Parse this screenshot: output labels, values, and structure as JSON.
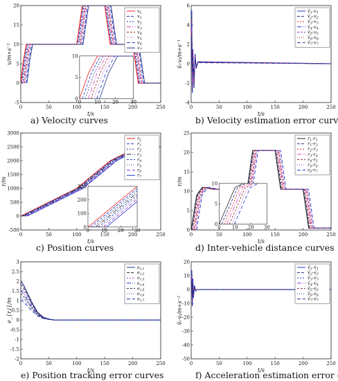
{
  "colors": {
    "red": "#e8211f",
    "blue": "#1f36c8",
    "navy": "#223388",
    "black": "#222222",
    "purple": "#9b2fd6",
    "magenta": "#d63cb6",
    "darkred": "#8a2a2a",
    "green": "#2c8a3a"
  },
  "chart_data": [
    {
      "id": "a",
      "type": "line",
      "caption": "a)  Velocity  curves",
      "xlabel": "t/s",
      "ylabel": "v/m∗s⁻¹",
      "xlim": [
        0,
        250
      ],
      "ylim": [
        -5,
        20
      ],
      "xticks": [
        "0",
        "50",
        "100",
        "150",
        "200",
        "250"
      ],
      "yticks": [
        "-5",
        "0",
        "5",
        "10",
        "15",
        "20"
      ],
      "legend": [
        "v_L",
        "v_1",
        "v_2",
        "v_3",
        "v_4",
        "v_5",
        "v_6",
        "v_7"
      ],
      "series": [
        {
          "name": "v_L",
          "color": "red",
          "dash": "none",
          "points": [
            [
              0,
              0
            ],
            [
              5,
              6
            ],
            [
              10,
              10
            ],
            [
              100,
              10
            ],
            [
              110,
              20
            ],
            [
              150,
              20
            ],
            [
              160,
              10
            ],
            [
              200,
              10
            ],
            [
              210,
              0
            ],
            [
              250,
              0
            ]
          ]
        }
      ],
      "inset": {
        "xlim": [
          0,
          30
        ],
        "ylim": [
          0,
          10
        ],
        "xticks": [
          "0",
          "10",
          "20",
          "30"
        ],
        "yticks": [
          "0",
          "5",
          "10"
        ]
      }
    },
    {
      "id": "b",
      "type": "line",
      "caption": "b)  Velocity estimation error curves",
      "xlabel": "t/s",
      "ylabel": "v̂ᵢ-vᵢ/m∗s⁻¹",
      "xlim": [
        0,
        250
      ],
      "ylim": [
        -4,
        6
      ],
      "xticks": [
        "0",
        "50",
        "100",
        "150",
        "200",
        "250"
      ],
      "yticks": [
        "-4",
        "-2",
        "0",
        "2",
        "4",
        "6"
      ],
      "legend": [
        "v̂_1-v_1",
        "v̂_2-v_2",
        "v̂_3-v_3",
        "v̂_4-v_4",
        "v̂_5-v_5",
        "v̂_6-v_6",
        "v̂_7-v_7"
      ],
      "series": [
        {
          "name": "v̂_1-v_1",
          "color": "blue",
          "dash": "3,2",
          "points": [
            [
              0,
              0
            ],
            [
              1,
              5.5
            ],
            [
              2,
              -3
            ],
            [
              3,
              1.5
            ],
            [
              5,
              -2.5
            ],
            [
              7,
              1
            ],
            [
              9,
              -0.5
            ],
            [
              12,
              0.2
            ],
            [
              250,
              0
            ]
          ]
        }
      ]
    },
    {
      "id": "c",
      "type": "line",
      "caption": "c)  Position  curves",
      "xlabel": "t/s",
      "ylabel": "r/m",
      "xlim": [
        0,
        250
      ],
      "ylim": [
        -500,
        3000
      ],
      "xticks": [
        "0",
        "50",
        "100",
        "150",
        "200",
        "250"
      ],
      "yticks": [
        "-500",
        "0",
        "500",
        "1000",
        "1500",
        "2000",
        "2500",
        "3000"
      ],
      "legend": [
        "r_L",
        "r_1",
        "r_2",
        "r_3",
        "r_4",
        "r_5",
        "r_6",
        "r_7"
      ],
      "series": [
        {
          "name": "r_L",
          "color": "red",
          "dash": "none",
          "points": [
            [
              0,
              0
            ],
            [
              100,
              1000
            ],
            [
              160,
              2000
            ],
            [
              210,
              2500
            ],
            [
              250,
              2500
            ]
          ]
        }
      ],
      "inset": {
        "xlim": [
          0,
          30
        ],
        "ylim": [
          0,
          300
        ],
        "xticks": [
          "0",
          "10",
          "20",
          "30"
        ],
        "yticks": [
          "0",
          "100",
          "200",
          "300"
        ]
      }
    },
    {
      "id": "d",
      "type": "line",
      "caption": "d)  Inter-vehicle distance curves",
      "xlabel": "t/s",
      "ylabel": "r/m",
      "xlim": [
        0,
        250
      ],
      "ylim": [
        0,
        25
      ],
      "xticks": [
        "0",
        "50",
        "100",
        "150",
        "200",
        "250"
      ],
      "yticks": [
        "0",
        "5",
        "10",
        "15",
        "20",
        "25"
      ],
      "legend": [
        "r_L-r_1",
        "r_1-r_2",
        "r_2-r_3",
        "r_3-r_4",
        "r_4-r_5",
        "r_5-r_6",
        "r_6-r_7"
      ],
      "series": [
        {
          "name": "r_L-r_1",
          "color": "black",
          "dash": "3,2",
          "points": [
            [
              0,
              0
            ],
            [
              10,
              9
            ],
            [
              20,
              11
            ],
            [
              40,
              10.5
            ],
            [
              100,
              10.5
            ],
            [
              110,
              20.5
            ],
            [
              150,
              20.5
            ],
            [
              160,
              10.5
            ],
            [
              200,
              10.5
            ],
            [
              210,
              0.5
            ],
            [
              250,
              0.5
            ]
          ]
        }
      ],
      "inset": {
        "xlim": [
          0,
          30
        ],
        "ylim": [
          0,
          10
        ],
        "xticks": [
          "0",
          "10",
          "20",
          "30"
        ],
        "yticks": [
          "0",
          "5",
          "10"
        ]
      }
    },
    {
      "id": "e",
      "type": "line",
      "caption": "e)  Position tracking  error curves",
      "xlabel": "t/s",
      "ylabel": "e_{r,i}/m",
      "xlim": [
        0,
        250
      ],
      "ylim": [
        -2,
        3
      ],
      "xticks": [
        "0",
        "50",
        "100",
        "150",
        "200",
        "250"
      ],
      "yticks": [
        "-2",
        "-1.5",
        "-1",
        "-0.5",
        "0",
        "0.5",
        "1",
        "1.5",
        "2",
        "2.5",
        "3"
      ],
      "legend": [
        "e_{r,1}",
        "e_{r,2}",
        "e_{r,3}",
        "e_{r,4}",
        "e_{r,5}",
        "e_{r,6}",
        "e_{r,7}"
      ],
      "series": [
        {
          "name": "e_{r,1}",
          "color": "navy",
          "dash": "none",
          "points": [
            [
              0,
              2
            ],
            [
              5,
              1.8
            ],
            [
              10,
              1.5
            ],
            [
              20,
              0.9
            ],
            [
              30,
              0.4
            ],
            [
              40,
              0.15
            ],
            [
              50,
              0.05
            ],
            [
              60,
              0
            ],
            [
              250,
              0
            ]
          ]
        }
      ]
    },
    {
      "id": "f",
      "type": "line",
      "caption": "f)  Acceleration estimation error curves",
      "xlabel": "t/s",
      "ylabel": "v̂̇ᵢ-v̇ᵢ/m∗s⁻²",
      "xlim": [
        0,
        250
      ],
      "ylim": [
        -50,
        20
      ],
      "xticks": [
        "0",
        "50",
        "100",
        "150",
        "200",
        "250"
      ],
      "yticks": [
        "-50",
        "-40",
        "-30",
        "-20",
        "-10",
        "0",
        "10",
        "20"
      ],
      "legend": [
        "v̂̇_1-v̇_1",
        "v̂̇_2-v̇_2",
        "v̂̇_3-v̇_3",
        "v̂̇_4-v̇_4",
        "v̂̇_5-v̇_5",
        "v̂̇_6-v̇_6",
        "v̂̇_7-v̇_7"
      ],
      "series": [
        {
          "name": "v̂̇_1-v̇_1",
          "color": "blue",
          "dash": "3,2",
          "points": [
            [
              0,
              0
            ],
            [
              1,
              14
            ],
            [
              2,
              -12
            ],
            [
              3,
              8
            ],
            [
              4,
              -6
            ],
            [
              6,
              3
            ],
            [
              8,
              -1
            ],
            [
              10,
              0
            ],
            [
              250,
              0
            ]
          ]
        }
      ]
    }
  ]
}
